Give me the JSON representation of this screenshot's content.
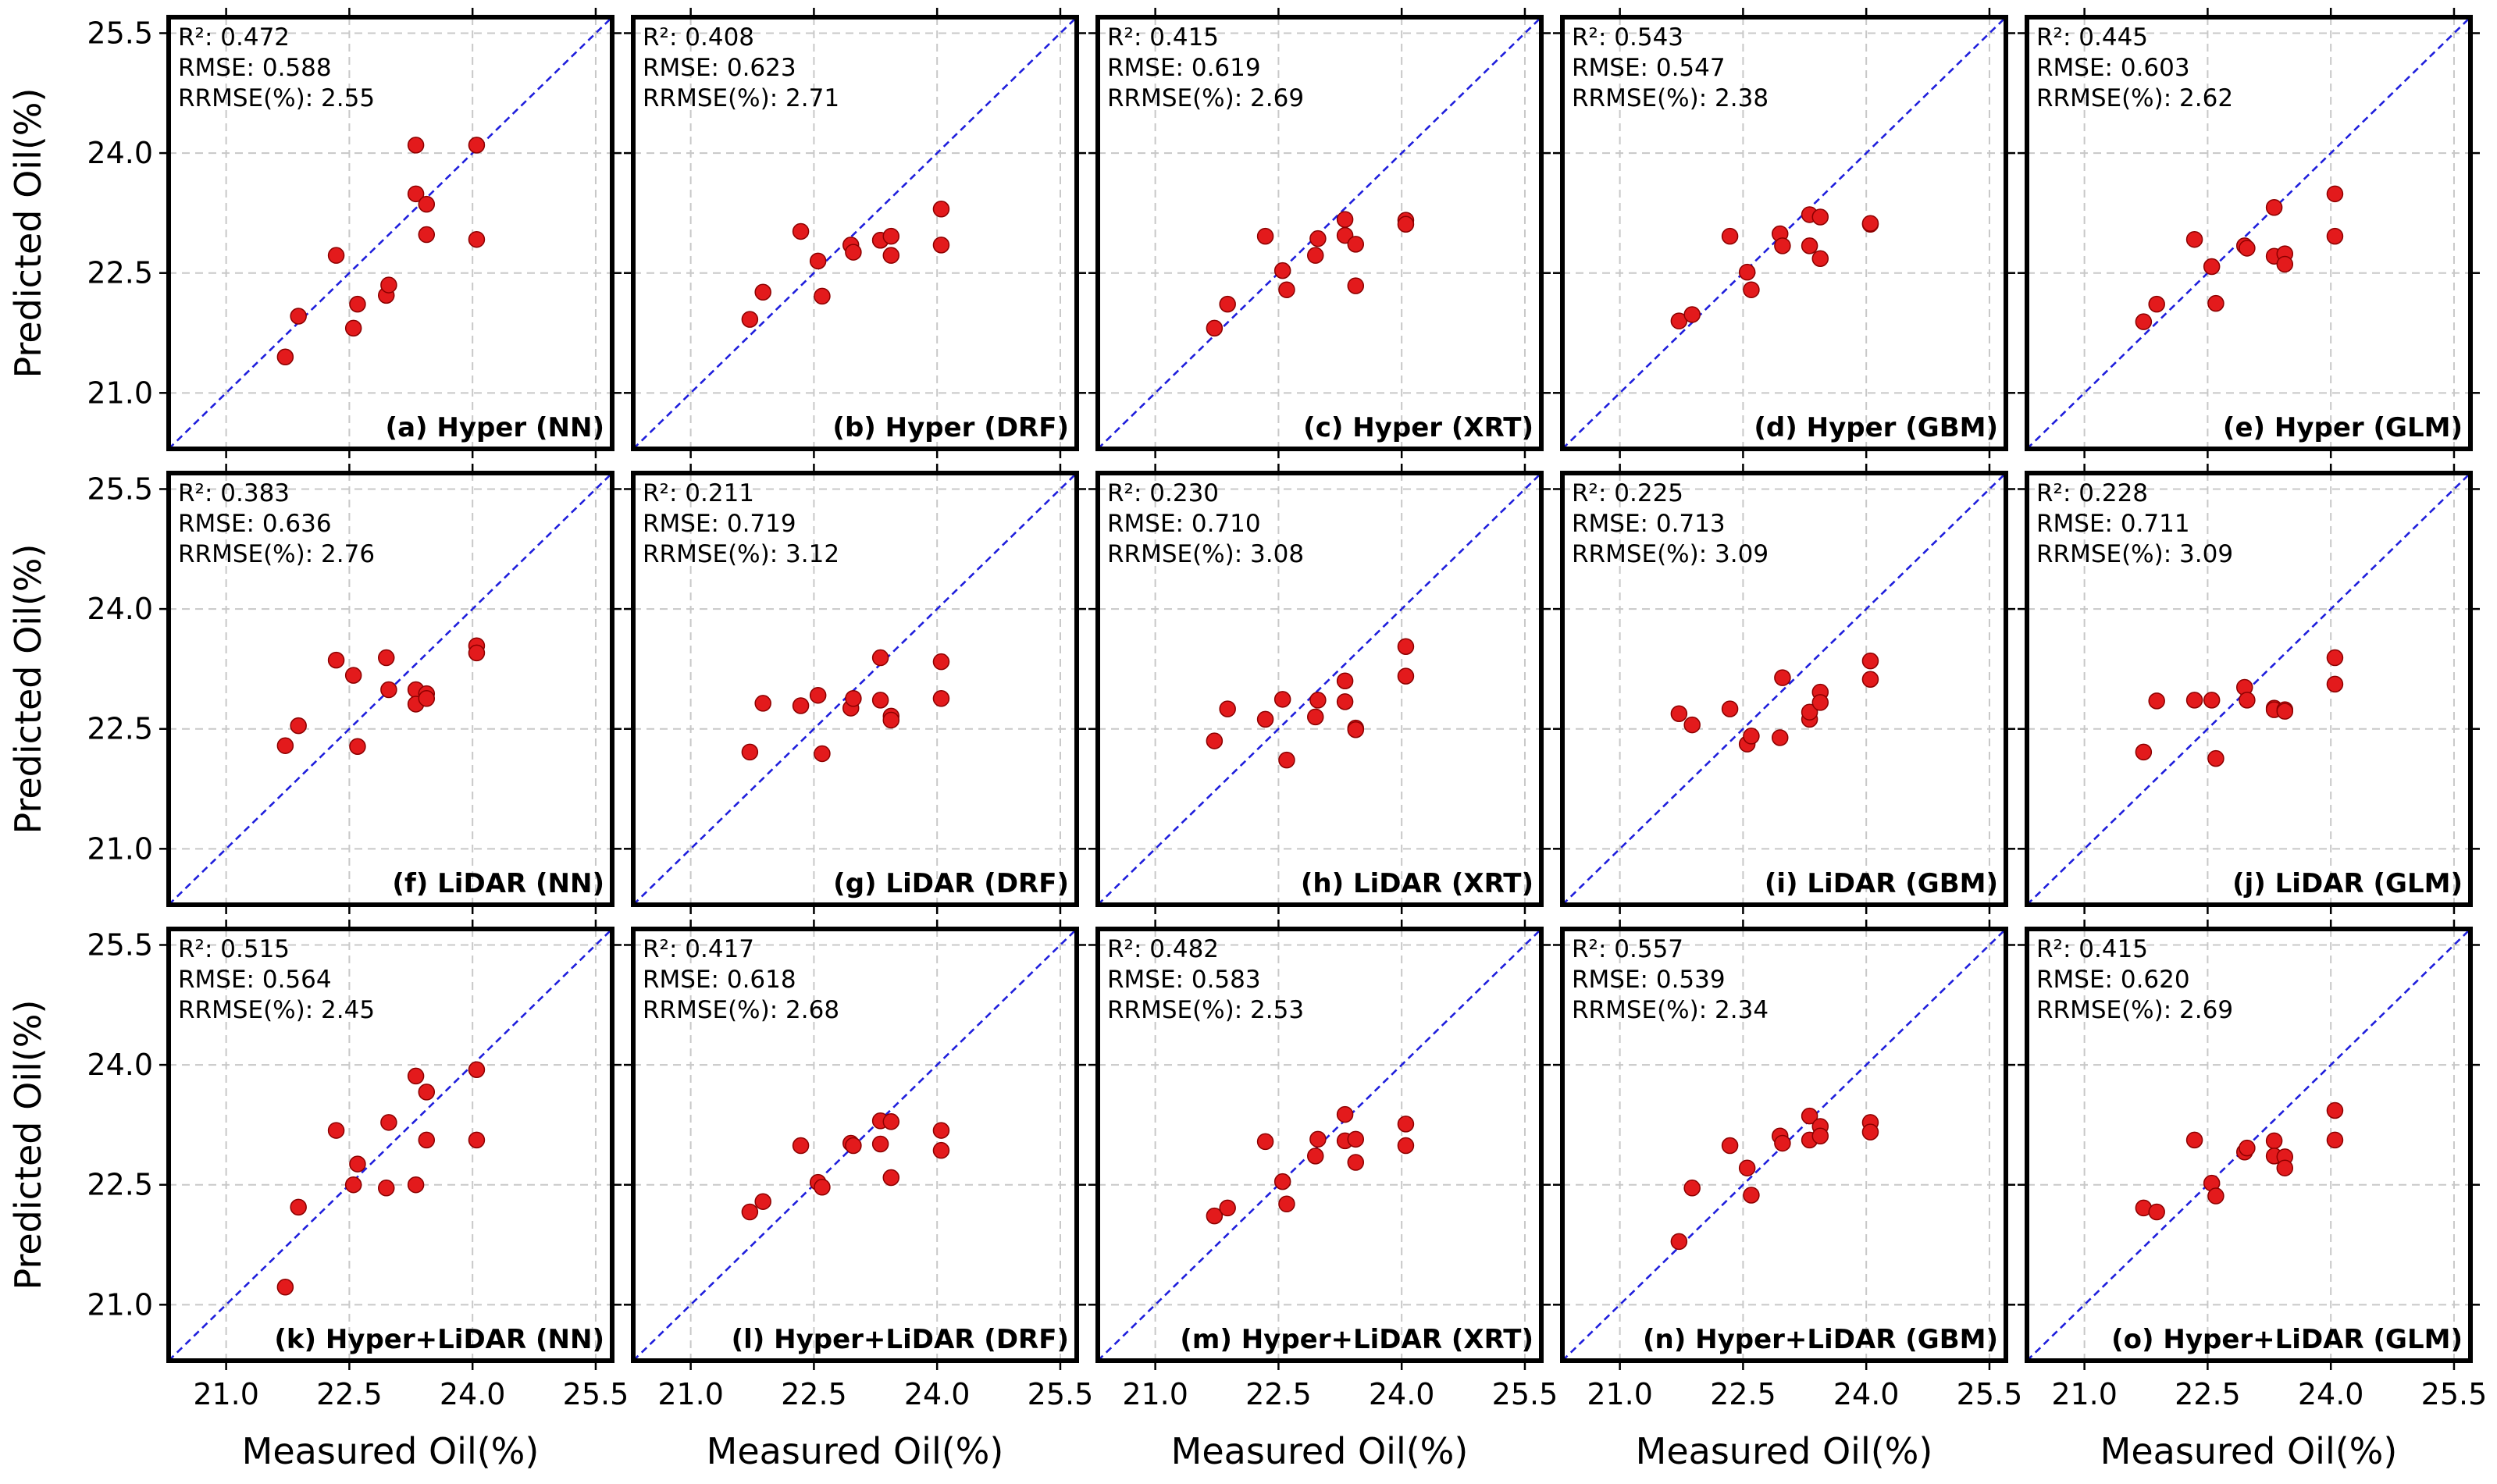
{
  "figure": {
    "colors": {
      "point": "#e31a1c",
      "point_edge": "#8b0000",
      "identity_line": "#1f1fdc",
      "grid": "#c8c8c8",
      "frame": "#000000",
      "text": "#000000"
    }
  },
  "chart_data": [
    {
      "type": "scatter",
      "title": "(a) Hyper (NN)",
      "xlabel": "",
      "ylabel": "Predicted Oil(%)",
      "xlim": [
        20.3,
        25.7
      ],
      "ylim": [
        20.3,
        25.7
      ],
      "xticks": [],
      "yticks": [
        "25.5",
        "24.0",
        "22.5",
        "21.0"
      ],
      "grid": true,
      "identity_line": true,
      "stats": [
        "R²: 0.472",
        "RMSE: 0.588",
        "RRMSE(%): 2.55"
      ],
      "points": [
        {
          "x": 21.72,
          "y": 21.45
        },
        {
          "x": 21.88,
          "y": 21.96
        },
        {
          "x": 22.34,
          "y": 22.72
        },
        {
          "x": 22.55,
          "y": 21.81
        },
        {
          "x": 22.6,
          "y": 22.11
        },
        {
          "x": 22.95,
          "y": 22.22
        },
        {
          "x": 22.98,
          "y": 22.35
        },
        {
          "x": 23.31,
          "y": 24.1
        },
        {
          "x": 23.31,
          "y": 23.49
        },
        {
          "x": 23.44,
          "y": 23.36
        },
        {
          "x": 23.44,
          "y": 22.98
        },
        {
          "x": 24.05,
          "y": 24.1
        },
        {
          "x": 24.05,
          "y": 22.92
        }
      ]
    },
    {
      "type": "scatter",
      "title": "(b) Hyper (DRF)",
      "xlabel": "",
      "ylabel": "",
      "xlim": [
        20.3,
        25.7
      ],
      "ylim": [
        20.3,
        25.7
      ],
      "xticks": [],
      "yticks": [],
      "grid": true,
      "identity_line": true,
      "stats": [
        "R²: 0.408",
        "RMSE: 0.623",
        "RRMSE(%): 2.71"
      ],
      "points": [
        {
          "x": 21.72,
          "y": 21.92
        },
        {
          "x": 21.88,
          "y": 22.26
        },
        {
          "x": 22.34,
          "y": 23.02
        },
        {
          "x": 22.55,
          "y": 22.65
        },
        {
          "x": 22.6,
          "y": 22.21
        },
        {
          "x": 22.95,
          "y": 22.85
        },
        {
          "x": 22.98,
          "y": 22.76
        },
        {
          "x": 23.31,
          "y": 22.91
        },
        {
          "x": 23.31,
          "y": 22.91
        },
        {
          "x": 23.44,
          "y": 22.96
        },
        {
          "x": 23.44,
          "y": 22.72
        },
        {
          "x": 24.05,
          "y": 23.3
        },
        {
          "x": 24.05,
          "y": 22.85
        }
      ]
    },
    {
      "type": "scatter",
      "title": "(c) Hyper (XRT)",
      "xlabel": "",
      "ylabel": "",
      "xlim": [
        20.3,
        25.7
      ],
      "ylim": [
        20.3,
        25.7
      ],
      "xticks": [],
      "yticks": [],
      "grid": true,
      "identity_line": true,
      "stats": [
        "R²: 0.415",
        "RMSE: 0.619",
        "RRMSE(%): 2.69"
      ],
      "points": [
        {
          "x": 21.72,
          "y": 21.81
        },
        {
          "x": 21.88,
          "y": 22.11
        },
        {
          "x": 22.34,
          "y": 22.96
        },
        {
          "x": 22.55,
          "y": 22.53
        },
        {
          "x": 22.6,
          "y": 22.29
        },
        {
          "x": 22.95,
          "y": 22.72
        },
        {
          "x": 22.98,
          "y": 22.93
        },
        {
          "x": 23.31,
          "y": 23.17
        },
        {
          "x": 23.31,
          "y": 22.97
        },
        {
          "x": 23.44,
          "y": 22.86
        },
        {
          "x": 23.44,
          "y": 22.34
        },
        {
          "x": 24.05,
          "y": 23.16
        },
        {
          "x": 24.05,
          "y": 23.11
        }
      ]
    },
    {
      "type": "scatter",
      "title": "(d) Hyper (GBM)",
      "xlabel": "",
      "ylabel": "",
      "xlim": [
        20.3,
        25.7
      ],
      "ylim": [
        20.3,
        25.7
      ],
      "xticks": [],
      "yticks": [],
      "grid": true,
      "identity_line": true,
      "stats": [
        "R²: 0.543",
        "RMSE: 0.547",
        "RRMSE(%): 2.38"
      ],
      "points": [
        {
          "x": 21.72,
          "y": 21.9
        },
        {
          "x": 21.88,
          "y": 21.98
        },
        {
          "x": 22.34,
          "y": 22.96
        },
        {
          "x": 22.55,
          "y": 22.51
        },
        {
          "x": 22.6,
          "y": 22.29
        },
        {
          "x": 22.95,
          "y": 22.99
        },
        {
          "x": 22.98,
          "y": 22.84
        },
        {
          "x": 23.31,
          "y": 23.23
        },
        {
          "x": 23.31,
          "y": 22.84
        },
        {
          "x": 23.44,
          "y": 23.2
        },
        {
          "x": 23.44,
          "y": 22.68
        },
        {
          "x": 24.05,
          "y": 23.11
        },
        {
          "x": 24.05,
          "y": 23.12
        }
      ]
    },
    {
      "type": "scatter",
      "title": "(e) Hyper (GLM)",
      "xlabel": "",
      "ylabel": "",
      "xlim": [
        20.3,
        25.7
      ],
      "ylim": [
        20.3,
        25.7
      ],
      "xticks": [],
      "yticks": [],
      "grid": true,
      "identity_line": true,
      "stats": [
        "R²: 0.445",
        "RMSE: 0.603",
        "RRMSE(%): 2.62"
      ],
      "points": [
        {
          "x": 21.72,
          "y": 21.89
        },
        {
          "x": 21.88,
          "y": 22.11
        },
        {
          "x": 22.34,
          "y": 22.92
        },
        {
          "x": 22.55,
          "y": 22.58
        },
        {
          "x": 22.6,
          "y": 22.12
        },
        {
          "x": 22.95,
          "y": 22.84
        },
        {
          "x": 22.98,
          "y": 22.81
        },
        {
          "x": 23.31,
          "y": 23.32
        },
        {
          "x": 23.31,
          "y": 22.71
        },
        {
          "x": 23.44,
          "y": 22.74
        },
        {
          "x": 23.44,
          "y": 22.61
        },
        {
          "x": 24.05,
          "y": 23.49
        },
        {
          "x": 24.05,
          "y": 22.96
        }
      ]
    },
    {
      "type": "scatter",
      "title": "(f) LiDAR (NN)",
      "xlabel": "",
      "ylabel": "Predicted Oil(%)",
      "xlim": [
        20.3,
        25.7
      ],
      "ylim": [
        20.3,
        25.7
      ],
      "xticks": [],
      "yticks": [
        "25.5",
        "24.0",
        "22.5",
        "21.0"
      ],
      "grid": true,
      "identity_line": true,
      "stats": [
        "R²: 0.383",
        "RMSE: 0.636",
        "RRMSE(%): 2.76"
      ],
      "points": [
        {
          "x": 21.72,
          "y": 22.29
        },
        {
          "x": 21.88,
          "y": 22.54
        },
        {
          "x": 22.34,
          "y": 23.36
        },
        {
          "x": 22.55,
          "y": 23.17
        },
        {
          "x": 22.6,
          "y": 22.28
        },
        {
          "x": 22.95,
          "y": 23.39
        },
        {
          "x": 22.98,
          "y": 22.99
        },
        {
          "x": 23.31,
          "y": 22.99
        },
        {
          "x": 23.31,
          "y": 22.81
        },
        {
          "x": 23.44,
          "y": 22.94
        },
        {
          "x": 23.44,
          "y": 22.88
        },
        {
          "x": 24.05,
          "y": 23.54
        },
        {
          "x": 24.05,
          "y": 23.45
        }
      ]
    },
    {
      "type": "scatter",
      "title": "(g) LiDAR (DRF)",
      "xlabel": "",
      "ylabel": "",
      "xlim": [
        20.3,
        25.7
      ],
      "ylim": [
        20.3,
        25.7
      ],
      "xticks": [],
      "yticks": [],
      "grid": true,
      "identity_line": true,
      "stats": [
        "R²: 0.211",
        "RMSE: 0.719",
        "RRMSE(%): 3.12"
      ],
      "points": [
        {
          "x": 21.72,
          "y": 22.21
        },
        {
          "x": 21.88,
          "y": 22.82
        },
        {
          "x": 22.34,
          "y": 22.79
        },
        {
          "x": 22.55,
          "y": 22.92
        },
        {
          "x": 22.6,
          "y": 22.19
        },
        {
          "x": 22.95,
          "y": 22.76
        },
        {
          "x": 22.98,
          "y": 22.88
        },
        {
          "x": 23.31,
          "y": 23.39
        },
        {
          "x": 23.31,
          "y": 22.86
        },
        {
          "x": 23.44,
          "y": 22.66
        },
        {
          "x": 23.44,
          "y": 22.61
        },
        {
          "x": 24.05,
          "y": 23.34
        },
        {
          "x": 24.05,
          "y": 22.88
        }
      ]
    },
    {
      "type": "scatter",
      "title": "(h) LiDAR (XRT)",
      "xlabel": "",
      "ylabel": "",
      "xlim": [
        20.3,
        25.7
      ],
      "ylim": [
        20.3,
        25.7
      ],
      "xticks": [],
      "yticks": [],
      "grid": true,
      "identity_line": true,
      "stats": [
        "R²: 0.230",
        "RMSE: 0.710",
        "RRMSE(%): 3.08"
      ],
      "points": [
        {
          "x": 21.72,
          "y": 22.35
        },
        {
          "x": 21.88,
          "y": 22.75
        },
        {
          "x": 22.34,
          "y": 22.62
        },
        {
          "x": 22.55,
          "y": 22.87
        },
        {
          "x": 22.6,
          "y": 22.11
        },
        {
          "x": 22.95,
          "y": 22.65
        },
        {
          "x": 22.98,
          "y": 22.86
        },
        {
          "x": 23.31,
          "y": 23.1
        },
        {
          "x": 23.31,
          "y": 22.84
        },
        {
          "x": 23.44,
          "y": 22.51
        },
        {
          "x": 23.44,
          "y": 22.49
        },
        {
          "x": 24.05,
          "y": 23.53
        },
        {
          "x": 24.05,
          "y": 23.16
        }
      ]
    },
    {
      "type": "scatter",
      "title": "(i) LiDAR (GBM)",
      "xlabel": "",
      "ylabel": "",
      "xlim": [
        20.3,
        25.7
      ],
      "ylim": [
        20.3,
        25.7
      ],
      "xticks": [],
      "yticks": [],
      "grid": true,
      "identity_line": true,
      "stats": [
        "R²: 0.225",
        "RMSE: 0.713",
        "RRMSE(%): 3.09"
      ],
      "points": [
        {
          "x": 21.72,
          "y": 22.69
        },
        {
          "x": 21.88,
          "y": 22.55
        },
        {
          "x": 22.34,
          "y": 22.75
        },
        {
          "x": 22.55,
          "y": 22.31
        },
        {
          "x": 22.6,
          "y": 22.41
        },
        {
          "x": 22.95,
          "y": 22.39
        },
        {
          "x": 22.98,
          "y": 23.14
        },
        {
          "x": 23.31,
          "y": 22.62
        },
        {
          "x": 23.31,
          "y": 22.71
        },
        {
          "x": 23.44,
          "y": 22.96
        },
        {
          "x": 23.44,
          "y": 22.83
        },
        {
          "x": 24.05,
          "y": 23.35
        },
        {
          "x": 24.05,
          "y": 23.12
        }
      ]
    },
    {
      "type": "scatter",
      "title": "(j) LiDAR (GLM)",
      "xlabel": "",
      "ylabel": "",
      "xlim": [
        20.3,
        25.7
      ],
      "ylim": [
        20.3,
        25.7
      ],
      "xticks": [],
      "yticks": [],
      "grid": true,
      "identity_line": true,
      "stats": [
        "R²: 0.228",
        "RMSE: 0.711",
        "RRMSE(%): 3.09"
      ],
      "points": [
        {
          "x": 21.72,
          "y": 22.21
        },
        {
          "x": 21.88,
          "y": 22.85
        },
        {
          "x": 22.34,
          "y": 22.86
        },
        {
          "x": 22.55,
          "y": 22.86
        },
        {
          "x": 22.6,
          "y": 22.13
        },
        {
          "x": 22.95,
          "y": 23.02
        },
        {
          "x": 22.98,
          "y": 22.86
        },
        {
          "x": 23.31,
          "y": 22.76
        },
        {
          "x": 23.31,
          "y": 22.74
        },
        {
          "x": 23.44,
          "y": 22.74
        },
        {
          "x": 23.44,
          "y": 22.72
        },
        {
          "x": 24.05,
          "y": 23.39
        },
        {
          "x": 24.05,
          "y": 23.06
        }
      ]
    },
    {
      "type": "scatter",
      "title": "(k) Hyper+LiDAR (NN)",
      "xlabel": "Measured Oil(%)",
      "ylabel": "Predicted Oil(%)",
      "xlim": [
        20.3,
        25.7
      ],
      "ylim": [
        20.3,
        25.7
      ],
      "xticks": [
        "21.0",
        "22.5",
        "24.0",
        "25.5"
      ],
      "yticks": [
        "25.5",
        "24.0",
        "22.5",
        "21.0"
      ],
      "grid": true,
      "identity_line": true,
      "stats": [
        "R²: 0.515",
        "RMSE: 0.564",
        "RRMSE(%): 2.45"
      ],
      "points": [
        {
          "x": 21.72,
          "y": 21.22
        },
        {
          "x": 21.88,
          "y": 22.22
        },
        {
          "x": 22.34,
          "y": 23.18
        },
        {
          "x": 22.55,
          "y": 22.5
        },
        {
          "x": 22.6,
          "y": 22.76
        },
        {
          "x": 22.95,
          "y": 22.46
        },
        {
          "x": 22.98,
          "y": 23.28
        },
        {
          "x": 23.31,
          "y": 23.86
        },
        {
          "x": 23.31,
          "y": 22.5
        },
        {
          "x": 23.44,
          "y": 23.66
        },
        {
          "x": 23.44,
          "y": 23.06
        },
        {
          "x": 24.05,
          "y": 23.94
        },
        {
          "x": 24.05,
          "y": 23.06
        }
      ]
    },
    {
      "type": "scatter",
      "title": "(l) Hyper+LiDAR (DRF)",
      "xlabel": "Measured Oil(%)",
      "ylabel": "",
      "xlim": [
        20.3,
        25.7
      ],
      "ylim": [
        20.3,
        25.7
      ],
      "xticks": [
        "21.0",
        "22.5",
        "24.0",
        "25.5"
      ],
      "yticks": [],
      "grid": true,
      "identity_line": true,
      "stats": [
        "R²: 0.417",
        "RMSE: 0.618",
        "RRMSE(%): 2.68"
      ],
      "points": [
        {
          "x": 21.72,
          "y": 22.16
        },
        {
          "x": 21.88,
          "y": 22.29
        },
        {
          "x": 22.34,
          "y": 22.99
        },
        {
          "x": 22.55,
          "y": 22.53
        },
        {
          "x": 22.6,
          "y": 22.47
        },
        {
          "x": 22.95,
          "y": 23.02
        },
        {
          "x": 22.98,
          "y": 22.99
        },
        {
          "x": 23.31,
          "y": 23.3
        },
        {
          "x": 23.31,
          "y": 23.01
        },
        {
          "x": 23.44,
          "y": 23.29
        },
        {
          "x": 23.44,
          "y": 22.59
        },
        {
          "x": 24.05,
          "y": 23.18
        },
        {
          "x": 24.05,
          "y": 22.93
        }
      ]
    },
    {
      "type": "scatter",
      "title": "(m) Hyper+LiDAR (XRT)",
      "xlabel": "Measured Oil(%)",
      "ylabel": "",
      "xlim": [
        20.3,
        25.7
      ],
      "ylim": [
        20.3,
        25.7
      ],
      "xticks": [
        "21.0",
        "22.5",
        "24.0",
        "25.5"
      ],
      "yticks": [],
      "grid": true,
      "identity_line": true,
      "stats": [
        "R²: 0.482",
        "RMSE: 0.583",
        "RRMSE(%): 2.53"
      ],
      "points": [
        {
          "x": 21.72,
          "y": 22.11
        },
        {
          "x": 21.88,
          "y": 22.21
        },
        {
          "x": 22.34,
          "y": 23.04
        },
        {
          "x": 22.55,
          "y": 22.54
        },
        {
          "x": 22.6,
          "y": 22.26
        },
        {
          "x": 22.95,
          "y": 22.86
        },
        {
          "x": 22.98,
          "y": 23.07
        },
        {
          "x": 23.31,
          "y": 23.38
        },
        {
          "x": 23.31,
          "y": 23.05
        },
        {
          "x": 23.44,
          "y": 23.07
        },
        {
          "x": 23.44,
          "y": 22.78
        },
        {
          "x": 24.05,
          "y": 23.26
        },
        {
          "x": 24.05,
          "y": 22.99
        }
      ]
    },
    {
      "type": "scatter",
      "title": "(n) Hyper+LiDAR (GBM)",
      "xlabel": "Measured Oil(%)",
      "ylabel": "",
      "xlim": [
        20.3,
        25.7
      ],
      "ylim": [
        20.3,
        25.7
      ],
      "xticks": [
        "21.0",
        "22.5",
        "24.0",
        "25.5"
      ],
      "yticks": [],
      "grid": true,
      "identity_line": true,
      "stats": [
        "R²: 0.557",
        "RMSE: 0.539",
        "RRMSE(%): 2.34"
      ],
      "points": [
        {
          "x": 21.72,
          "y": 21.79
        },
        {
          "x": 21.88,
          "y": 22.46
        },
        {
          "x": 22.34,
          "y": 22.99
        },
        {
          "x": 22.55,
          "y": 22.71
        },
        {
          "x": 22.6,
          "y": 22.37
        },
        {
          "x": 22.95,
          "y": 23.11
        },
        {
          "x": 22.98,
          "y": 23.02
        },
        {
          "x": 23.31,
          "y": 23.36
        },
        {
          "x": 23.31,
          "y": 23.06
        },
        {
          "x": 23.44,
          "y": 23.23
        },
        {
          "x": 23.44,
          "y": 23.11
        },
        {
          "x": 24.05,
          "y": 23.28
        },
        {
          "x": 24.05,
          "y": 23.16
        }
      ]
    },
    {
      "type": "scatter",
      "title": "(o) Hyper+LiDAR (GLM)",
      "xlabel": "Measured Oil(%)",
      "ylabel": "",
      "xlim": [
        20.3,
        25.7
      ],
      "ylim": [
        20.3,
        25.7
      ],
      "xticks": [
        "21.0",
        "22.5",
        "24.0",
        "25.5"
      ],
      "yticks": [],
      "grid": true,
      "identity_line": true,
      "stats": [
        "R²: 0.415",
        "RMSE: 0.620",
        "RRMSE(%): 2.69"
      ],
      "points": [
        {
          "x": 21.72,
          "y": 22.21
        },
        {
          "x": 21.88,
          "y": 22.16
        },
        {
          "x": 22.34,
          "y": 23.06
        },
        {
          "x": 22.55,
          "y": 22.52
        },
        {
          "x": 22.6,
          "y": 22.36
        },
        {
          "x": 22.95,
          "y": 22.91
        },
        {
          "x": 22.98,
          "y": 22.96
        },
        {
          "x": 23.31,
          "y": 23.05
        },
        {
          "x": 23.31,
          "y": 22.86
        },
        {
          "x": 23.44,
          "y": 22.85
        },
        {
          "x": 23.44,
          "y": 22.71
        },
        {
          "x": 24.05,
          "y": 23.43
        },
        {
          "x": 24.05,
          "y": 23.06
        }
      ]
    }
  ]
}
